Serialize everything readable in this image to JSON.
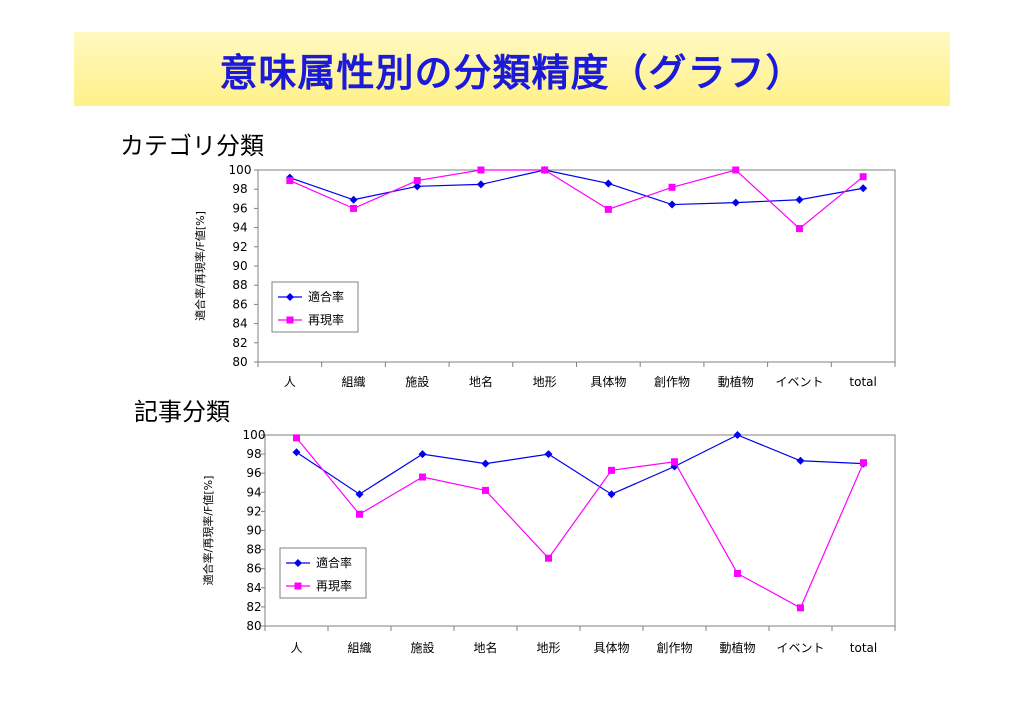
{
  "slide": {
    "title": "意味属性別の分類精度（グラフ）"
  },
  "sections": [
    {
      "heading": "カテゴリ分類"
    },
    {
      "heading": "記事分類"
    }
  ],
  "colors": {
    "title": "#1a1ad8",
    "banner": "#fff4a0",
    "precision": "#0000ee",
    "recall": "#ff00ff"
  },
  "chart_data": [
    {
      "type": "line",
      "ylabel": "適合率/再現率/F値[%]",
      "ylim": [
        80,
        100
      ],
      "yticks": [
        80,
        82,
        84,
        86,
        88,
        90,
        92,
        94,
        96,
        98,
        100
      ],
      "categories": [
        "人",
        "組織",
        "施設",
        "地名",
        "地形",
        "具体物",
        "創作物",
        "動植物",
        "イベント",
        "total"
      ],
      "legend_position": "left-lower",
      "series": [
        {
          "name": "適合率",
          "marker": "diamond",
          "color": "#0000ee",
          "values": [
            99.2,
            96.9,
            98.3,
            98.5,
            100,
            98.6,
            96.4,
            96.6,
            96.9,
            98.1
          ]
        },
        {
          "name": "再現率",
          "marker": "square",
          "color": "#ff00ff",
          "values": [
            98.9,
            96.0,
            98.9,
            100,
            100,
            95.9,
            98.2,
            100,
            93.9,
            99.3
          ]
        }
      ]
    },
    {
      "type": "line",
      "ylabel": "適合率/再現率/F値[%]",
      "ylim": [
        80,
        100
      ],
      "yticks": [
        80,
        82,
        84,
        86,
        88,
        90,
        92,
        94,
        96,
        98,
        100
      ],
      "categories": [
        "人",
        "組織",
        "施設",
        "地名",
        "地形",
        "具体物",
        "創作物",
        "動植物",
        "イベント",
        "total"
      ],
      "legend_position": "left-lower",
      "series": [
        {
          "name": "適合率",
          "marker": "diamond",
          "color": "#0000ee",
          "values": [
            98.2,
            93.8,
            98.0,
            97.0,
            98.0,
            93.8,
            96.7,
            100,
            97.3,
            97.0
          ]
        },
        {
          "name": "再現率",
          "marker": "square",
          "color": "#ff00ff",
          "values": [
            99.7,
            91.7,
            95.6,
            94.2,
            87.1,
            96.3,
            97.2,
            85.5,
            81.9,
            97.1
          ]
        }
      ]
    }
  ]
}
